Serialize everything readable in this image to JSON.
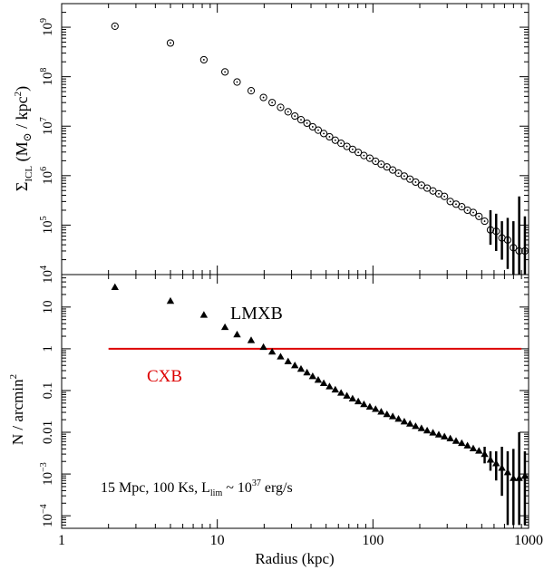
{
  "chart_data": [
    {
      "type": "scatter",
      "panel": "top",
      "ylabel": "Σ_ICL (M_⊙ / kpc²)",
      "y_scale": "log",
      "ylim": [
        10000,
        3000000000
      ],
      "yticks": [
        {
          "v": 1000000000.0,
          "m": "10",
          "e": "9"
        },
        {
          "v": 100000000.0,
          "m": "10",
          "e": "8"
        },
        {
          "v": 10000000.0,
          "m": "10",
          "e": "7"
        },
        {
          "v": 1000000.0,
          "m": "10",
          "e": "6"
        },
        {
          "v": 100000.0,
          "m": "10",
          "e": "5"
        },
        {
          "v": 10000.0,
          "m": "10",
          "e": "4"
        }
      ],
      "marker": "circle-dot",
      "series": [
        {
          "x": [
            2.2,
            5.0,
            8.2,
            11.2,
            13.4,
            16.5,
            19.8,
            22.5,
            25.5,
            28.5,
            31.5,
            34.5,
            37.7,
            41.0,
            44.5,
            48.3,
            52.6,
            57.3,
            62.4,
            68,
            74,
            80.5,
            87.5,
            95.5,
            104,
            113,
            123,
            134,
            146,
            159,
            173,
            188,
            205,
            223,
            243,
            265,
            288,
            314,
            342,
            372,
            405,
            441,
            480,
            522,
            569,
            619,
            674,
            734,
            799,
            870,
            947
          ],
          "y": [
            1050000000,
            480000000,
            220000000,
            125000000,
            78000000,
            52000000,
            38000000,
            30000000,
            24000000,
            19500000,
            16000000,
            13500000,
            11500000,
            9700000,
            8300000,
            7100000,
            6100000,
            5200000,
            4500000,
            3900000,
            3400000,
            2950000,
            2550000,
            2250000,
            1950000,
            1700000,
            1500000,
            1300000,
            1120000,
            980000,
            850000,
            740000,
            640000,
            560000,
            490000,
            430000,
            380000,
            300000,
            265000,
            235000,
            200000,
            180000,
            150000,
            120000,
            80000,
            75000,
            55000,
            50000,
            35000,
            30000,
            30000
          ],
          "err": [
            {
              "x": 734,
              "lo": 13000,
              "hi": 140000
            },
            {
              "x": 799,
              "lo": 10000,
              "hi": 120000
            },
            {
              "x": 870,
              "lo": 10000,
              "hi": 380000
            },
            {
              "x": 947,
              "lo": 10000,
              "hi": 150000
            },
            {
              "x": 674,
              "lo": 20000,
              "hi": 120000
            },
            {
              "x": 619,
              "lo": 30000,
              "hi": 170000
            },
            {
              "x": 569,
              "lo": 40000,
              "hi": 200000
            }
          ]
        }
      ]
    },
    {
      "type": "scatter",
      "panel": "bottom",
      "ylabel": "N / arcmin²",
      "y_scale": "log",
      "ylim": [
        5e-05,
        60
      ],
      "yticks": [
        {
          "v": 10,
          "m": "10",
          "e": ""
        },
        {
          "v": 1,
          "m": "1",
          "e": ""
        },
        {
          "v": 0.1,
          "m": "0.1",
          "e": ""
        },
        {
          "v": 0.01,
          "m": "0.01",
          "e": ""
        },
        {
          "v": 0.001,
          "m": "10",
          "e": "−3"
        },
        {
          "v": 0.0001,
          "m": "10",
          "e": "−4"
        }
      ],
      "marker": "triangle",
      "series": [
        {
          "name": "LMXB",
          "x": [
            2.2,
            5.0,
            8.2,
            11.2,
            13.4,
            16.5,
            19.8,
            22.5,
            25.5,
            28.5,
            31.5,
            34.5,
            37.7,
            41.0,
            44.5,
            48.3,
            52.6,
            57.3,
            62.4,
            68,
            74,
            80.5,
            87.5,
            95.5,
            104,
            113,
            123,
            134,
            146,
            159,
            173,
            188,
            205,
            223,
            243,
            265,
            288,
            314,
            342,
            372,
            405,
            441,
            480,
            522,
            569,
            619,
            674,
            734,
            799,
            870,
            947
          ],
          "y": [
            30,
            14,
            6.5,
            3.3,
            2.2,
            1.6,
            1.1,
            0.85,
            0.65,
            0.5,
            0.4,
            0.33,
            0.27,
            0.22,
            0.18,
            0.15,
            0.125,
            0.105,
            0.088,
            0.075,
            0.064,
            0.055,
            0.047,
            0.041,
            0.036,
            0.031,
            0.027,
            0.024,
            0.021,
            0.018,
            0.016,
            0.014,
            0.0125,
            0.011,
            0.0098,
            0.0088,
            0.0079,
            0.0071,
            0.0062,
            0.0055,
            0.0048,
            0.0041,
            0.0036,
            0.003,
            0.0022,
            0.0018,
            0.0014,
            0.0011,
            0.0008,
            0.0008,
            0.0009
          ],
          "err": [
            {
              "x": 522,
              "lo": 0.0018,
              "hi": 0.0045
            },
            {
              "x": 569,
              "lo": 0.0012,
              "hi": 0.0035
            },
            {
              "x": 619,
              "lo": 0.0007,
              "hi": 0.0035
            },
            {
              "x": 674,
              "lo": 0.0003,
              "hi": 0.0045
            },
            {
              "x": 734,
              "lo": 6e-05,
              "hi": 0.0035
            },
            {
              "x": 799,
              "lo": 6e-05,
              "hi": 0.004
            },
            {
              "x": 870,
              "lo": 6e-05,
              "hi": 0.01
            },
            {
              "x": 947,
              "lo": 6e-05,
              "hi": 0.0035
            }
          ]
        },
        {
          "name": "CXB",
          "line": true,
          "x": [
            2.0,
            900
          ],
          "y": [
            1.0,
            1.0
          ]
        }
      ]
    }
  ],
  "xaxis": {
    "label": "Radius (kpc)",
    "scale": "log",
    "xlim": [
      1,
      1000
    ],
    "ticks": [
      {
        "v": 1,
        "label": "1"
      },
      {
        "v": 10,
        "label": "10"
      },
      {
        "v": 100,
        "label": "100"
      },
      {
        "v": 1000,
        "label": "1000"
      }
    ]
  },
  "annotations": {
    "lmxb": "LMXB",
    "cxb": "CXB",
    "note_pre": "15 Mpc, 100 Ks, L",
    "note_sub": "lim",
    "note_mid": " ~ 10",
    "note_sup": "37",
    "note_post": " erg/s"
  },
  "colors": {
    "axes": "#000000",
    "cxb": "#dd0000",
    "points": "#000000"
  }
}
